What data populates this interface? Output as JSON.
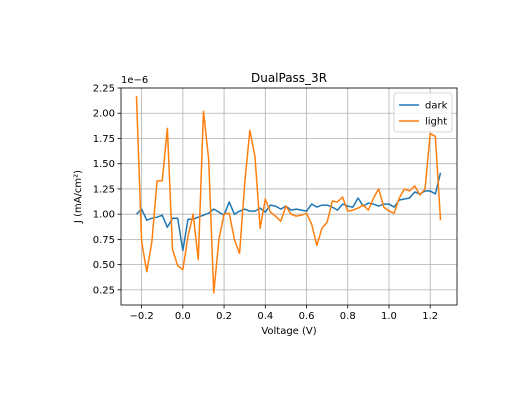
{
  "chart_data": {
    "type": "line",
    "title": "DualPass_3R",
    "xlabel": "Voltage (V)",
    "ylabel": "J (mA/cm²)",
    "y_offset_text": "1e−6",
    "xlim": [
      -0.3,
      1.33
    ],
    "ylim": [
      0.1,
      2.25
    ],
    "xticks": [
      -0.2,
      0.0,
      0.2,
      0.4,
      0.6,
      0.8,
      1.0,
      1.2
    ],
    "xtick_labels": [
      "−0.2",
      "0.0",
      "0.2",
      "0.4",
      "0.6",
      "0.8",
      "1.0",
      "1.2"
    ],
    "yticks": [
      0.25,
      0.5,
      0.75,
      1.0,
      1.25,
      1.5,
      1.75,
      2.0,
      2.25
    ],
    "ytick_labels": [
      "0.25",
      "0.50",
      "0.75",
      "1.00",
      "1.25",
      "1.50",
      "1.75",
      "2.00",
      "2.25"
    ],
    "grid": true,
    "legend_placement": "top-right",
    "series": [
      {
        "name": "dark",
        "color": "#1f77b4",
        "x": [
          -0.225,
          -0.2,
          -0.175,
          -0.15,
          -0.125,
          -0.1,
          -0.075,
          -0.05,
          -0.025,
          0.0,
          0.025,
          0.05,
          0.075,
          0.1,
          0.125,
          0.15,
          0.175,
          0.2,
          0.225,
          0.25,
          0.275,
          0.3,
          0.325,
          0.35,
          0.375,
          0.4,
          0.425,
          0.45,
          0.475,
          0.5,
          0.525,
          0.55,
          0.575,
          0.6,
          0.625,
          0.65,
          0.675,
          0.7,
          0.725,
          0.75,
          0.775,
          0.8,
          0.825,
          0.85,
          0.875,
          0.9,
          0.925,
          0.95,
          0.975,
          1.0,
          1.025,
          1.05,
          1.075,
          1.1,
          1.125,
          1.15,
          1.175,
          1.2,
          1.225,
          1.25
        ],
        "y": [
          1.0,
          1.05,
          0.94,
          0.96,
          0.97,
          0.99,
          0.87,
          0.96,
          0.96,
          0.64,
          0.95,
          0.95,
          0.97,
          0.99,
          1.01,
          1.05,
          1.02,
          0.99,
          1.12,
          1.0,
          1.03,
          1.05,
          1.03,
          1.03,
          1.06,
          1.02,
          1.09,
          1.08,
          1.05,
          1.08,
          1.04,
          1.05,
          1.04,
          1.03,
          1.1,
          1.07,
          1.09,
          1.09,
          1.07,
          1.04,
          1.1,
          1.08,
          1.07,
          1.16,
          1.08,
          1.11,
          1.1,
          1.08,
          1.1,
          1.1,
          1.07,
          1.14,
          1.15,
          1.16,
          1.22,
          1.2,
          1.23,
          1.23,
          1.2,
          1.41
        ]
      },
      {
        "name": "light",
        "color": "#ff7f0e",
        "x": [
          -0.225,
          -0.2,
          -0.175,
          -0.15,
          -0.125,
          -0.1,
          -0.075,
          -0.05,
          -0.025,
          0.0,
          0.025,
          0.05,
          0.075,
          0.1,
          0.125,
          0.15,
          0.175,
          0.2,
          0.225,
          0.25,
          0.275,
          0.3,
          0.325,
          0.35,
          0.375,
          0.4,
          0.425,
          0.45,
          0.475,
          0.5,
          0.525,
          0.55,
          0.575,
          0.6,
          0.625,
          0.65,
          0.675,
          0.7,
          0.725,
          0.75,
          0.775,
          0.8,
          0.825,
          0.85,
          0.875,
          0.9,
          0.925,
          0.95,
          0.975,
          1.0,
          1.025,
          1.05,
          1.075,
          1.1,
          1.125,
          1.15,
          1.175,
          1.2,
          1.225,
          1.25
        ],
        "y": [
          2.17,
          0.73,
          0.43,
          0.73,
          1.33,
          1.33,
          1.85,
          0.65,
          0.49,
          0.45,
          0.78,
          1.0,
          0.55,
          2.02,
          1.55,
          0.22,
          0.75,
          1.0,
          1.01,
          0.75,
          0.61,
          1.3,
          1.83,
          1.57,
          0.86,
          1.15,
          1.02,
          0.98,
          0.93,
          1.08,
          1.0,
          0.98,
          0.99,
          1.01,
          0.9,
          0.69,
          0.86,
          0.92,
          1.13,
          1.12,
          1.17,
          1.03,
          1.04,
          1.06,
          1.09,
          1.04,
          1.16,
          1.25,
          1.07,
          1.03,
          1.01,
          1.16,
          1.25,
          1.23,
          1.28,
          1.19,
          1.25,
          1.8,
          1.77,
          0.94
        ]
      }
    ]
  }
}
